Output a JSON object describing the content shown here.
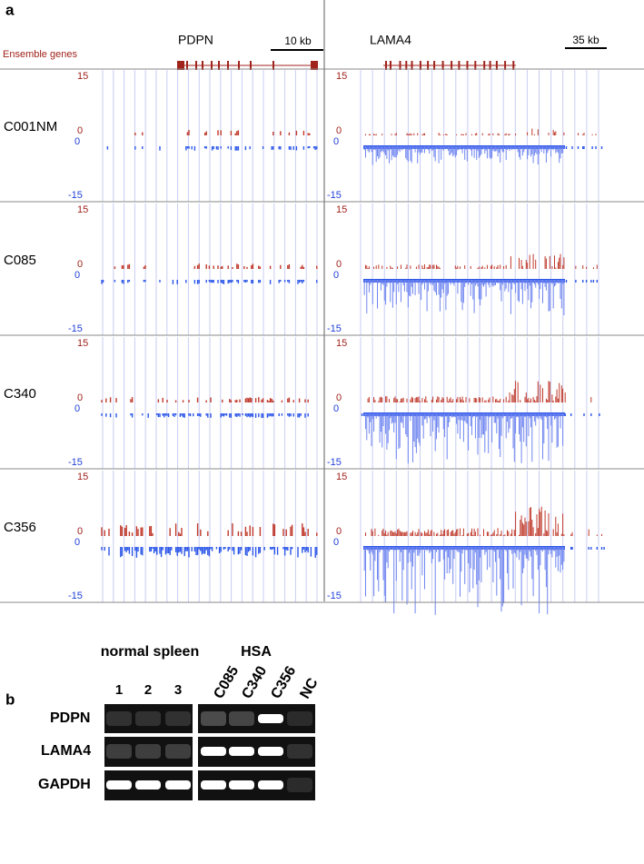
{
  "panel_a": {
    "label": "a",
    "track_label": "Ensemble genes",
    "genes": [
      {
        "name": "PDPN",
        "scale": "10 kb"
      },
      {
        "name": "LAMA4",
        "scale": "35 kb"
      }
    ],
    "samples": [
      "C001NM",
      "C085",
      "C340",
      "C356"
    ],
    "axis_labels": {
      "top": "15",
      "zero": "0",
      "bottom": "-15"
    }
  },
  "panel_b": {
    "label": "b",
    "groups": [
      "normal spleen",
      "HSA"
    ],
    "lanes": [
      "1",
      "2",
      "3",
      "C085",
      "C340",
      "C356",
      "NC"
    ],
    "genes": [
      "PDPN",
      "LAMA4",
      "GAPDH"
    ]
  }
}
